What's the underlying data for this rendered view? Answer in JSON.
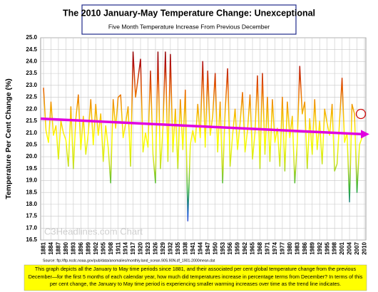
{
  "chart_data": {
    "type": "line",
    "title": "The 2010 January-May Temperature Change: Unexceptional",
    "subtitle": "Five Month Temperature Increase From Previous December",
    "y_label": "Temperature Per Cent Change (%)",
    "source": "Source: ftp://ftp.ncdc.noaa.gov/pub/data/anomalies/monthly.land_ocean.90S.90N.df_1901-2000mean.dat",
    "watermark": "C3Headlines.com Chart",
    "note": "This graph depicts all the January to May time periods since 1881, and their associated per cent global temperature change from the previous December—for the first 5 months of each calendar year, how much did temperatures increase in percentage terms from December? In terms of this per cent change, the January to May time period is experiencing smaller warming increases over time as the trend line indicates.",
    "x": [
      1881,
      1882,
      1883,
      1884,
      1885,
      1886,
      1887,
      1888,
      1889,
      1890,
      1891,
      1892,
      1893,
      1894,
      1895,
      1896,
      1897,
      1898,
      1899,
      1900,
      1901,
      1902,
      1903,
      1904,
      1905,
      1906,
      1907,
      1908,
      1909,
      1910,
      1911,
      1912,
      1913,
      1914,
      1915,
      1916,
      1917,
      1918,
      1919,
      1920,
      1921,
      1922,
      1923,
      1924,
      1925,
      1926,
      1927,
      1928,
      1929,
      1930,
      1931,
      1932,
      1933,
      1934,
      1935,
      1936,
      1937,
      1938,
      1939,
      1940,
      1941,
      1942,
      1943,
      1944,
      1945,
      1946,
      1947,
      1948,
      1949,
      1950,
      1951,
      1952,
      1953,
      1954,
      1955,
      1956,
      1957,
      1958,
      1959,
      1960,
      1961,
      1962,
      1963,
      1964,
      1965,
      1966,
      1967,
      1968,
      1969,
      1970,
      1971,
      1972,
      1973,
      1974,
      1975,
      1976,
      1977,
      1978,
      1979,
      1980,
      1981,
      1982,
      1983,
      1984,
      1985,
      1986,
      1987,
      1988,
      1989,
      1990,
      1991,
      1992,
      1993,
      1994,
      1995,
      1996,
      1997,
      1998,
      1999,
      2000,
      2001,
      2002,
      2003,
      2004,
      2005,
      2006,
      2007,
      2008,
      2009,
      2010
    ],
    "values": [
      22.9,
      21.1,
      20.6,
      22.3,
      20.9,
      21.3,
      19.9,
      21.5,
      21.0,
      20.7,
      19.6,
      22.1,
      19.5,
      21.6,
      22.6,
      20.3,
      21.7,
      20.1,
      21.0,
      22.4,
      20.5,
      22.2,
      20.9,
      21.8,
      19.8,
      21.3,
      20.4,
      18.9,
      22.4,
      21.2,
      22.5,
      22.6,
      20.8,
      21.4,
      22.1,
      19.6,
      24.4,
      22.5,
      23.3,
      24.1,
      20.2,
      21.0,
      20.4,
      23.6,
      20.1,
      18.9,
      24.4,
      19.5,
      21.2,
      24.4,
      19.8,
      24.3,
      20.2,
      22.0,
      19.5,
      22.4,
      20.3,
      22.8,
      17.3,
      20.5,
      21.1,
      20.6,
      22.2,
      20.8,
      24.0,
      20.4,
      23.6,
      20.9,
      21.7,
      23.5,
      20.2,
      22.3,
      18.9,
      21.9,
      23.7,
      19.6,
      20.9,
      22.0,
      20.3,
      21.4,
      22.7,
      20.2,
      21.1,
      22.6,
      19.9,
      21.0,
      23.4,
      19.5,
      23.5,
      20.1,
      22.5,
      19.8,
      22.4,
      20.6,
      21.2,
      19.6,
      22.5,
      19.4,
      22.3,
      20.8,
      21.7,
      18.9,
      20.6,
      23.8,
      21.8,
      22.3,
      19.5,
      21.6,
      20.1,
      22.4,
      20.3,
      21.5,
      19.7,
      22.0,
      21.4,
      20.9,
      22.2,
      19.4,
      19.7,
      21.5,
      23.3,
      20.6,
      21.0,
      18.1,
      22.2,
      21.8,
      18.5,
      20.5,
      20.8,
      20.9
    ],
    "line_colors": [
      "#7b2fbe",
      "#1f5fd6",
      "#2fae3c",
      "#c8e021",
      "#ffff00",
      "#f5b800",
      "#e65c00",
      "#b01010",
      "#6e0000"
    ],
    "trend": {
      "values": [
        21.6,
        20.95
      ],
      "color": "#e000e0"
    },
    "xlim": [
      1881,
      2010
    ],
    "xticks": [
      1881,
      1884,
      1887,
      1890,
      1893,
      1896,
      1899,
      1902,
      1905,
      1908,
      1911,
      1914,
      1917,
      1920,
      1923,
      1926,
      1929,
      1932,
      1935,
      1938,
      1941,
      1944,
      1947,
      1950,
      1953,
      1956,
      1959,
      1962,
      1965,
      1968,
      1971,
      1974,
      1977,
      1980,
      1983,
      1986,
      1989,
      1992,
      1995,
      1998,
      2001,
      2004,
      2007,
      2010
    ],
    "ylim": [
      16.5,
      25
    ],
    "yticks": [
      16.5,
      {
        "value": 17,
        "label": "17.0"
      },
      17.5,
      {
        "value": 18,
        "label": "18.0"
      },
      18.5,
      {
        "value": 19,
        "label": "19.0"
      },
      19.5,
      {
        "value": 20,
        "label": "20.0"
      },
      20.5,
      {
        "value": 21,
        "label": "21.0"
      },
      21.5,
      {
        "value": 22,
        "label": "22.0"
      },
      22.5,
      {
        "value": 23,
        "label": "23.0"
      },
      23.5,
      {
        "value": 24,
        "label": "24.0"
      },
      24.5,
      {
        "value": 25,
        "label": "25.0"
      }
    ],
    "grid": true
  }
}
